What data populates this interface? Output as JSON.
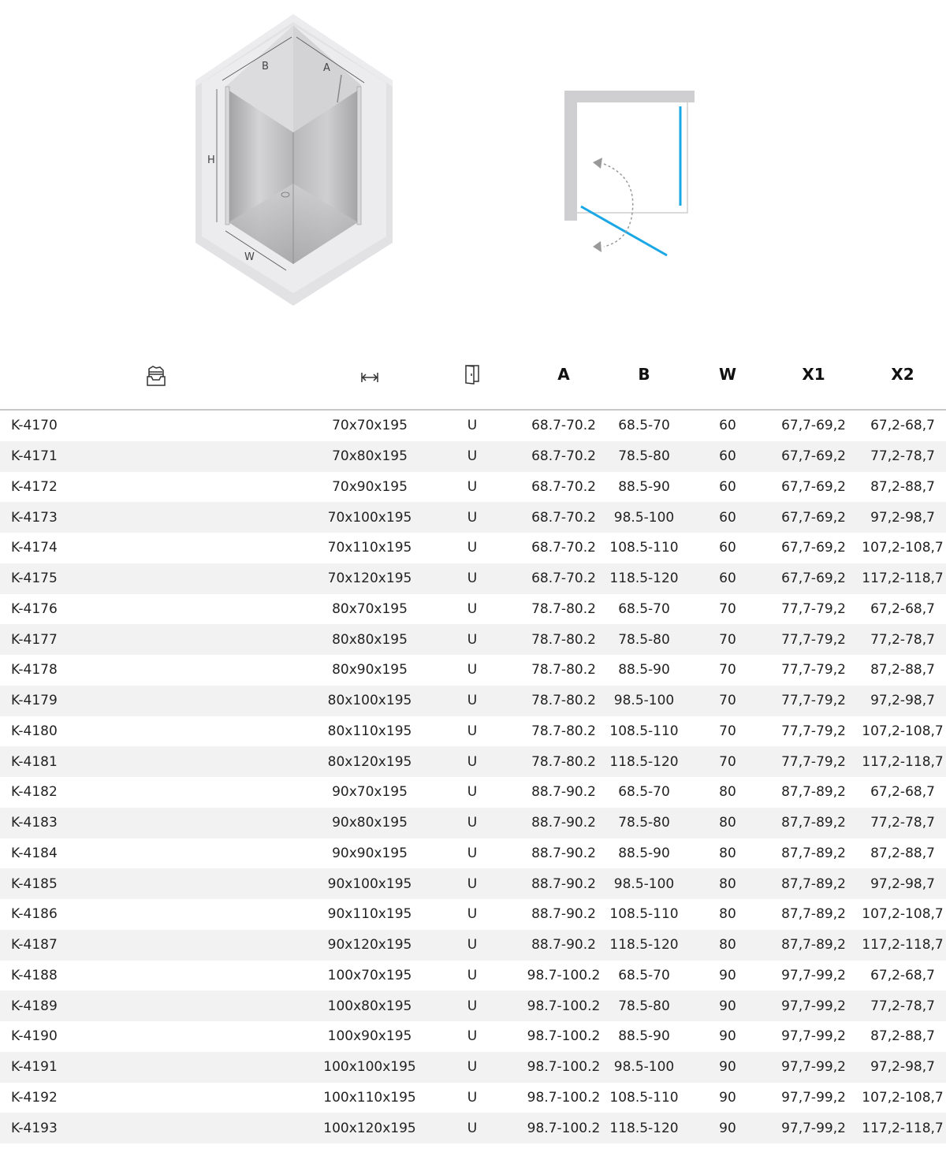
{
  "diagram": {
    "labels": {
      "b": "B",
      "a": "A",
      "h": "H",
      "w": "W"
    },
    "colors": {
      "glass_line": "#1aa7e6",
      "wall": "#cfcfd1",
      "arrow": "#999999"
    }
  },
  "table": {
    "header_icons": {
      "code": "catalog-tray-icon",
      "size": "width-arrows-icon",
      "door": "door-icon"
    },
    "headers": [
      "A",
      "B",
      "W",
      "X1",
      "X2"
    ],
    "rows": [
      [
        "K-4170",
        "70x70x195",
        "U",
        "68.7-70.2",
        "68.5-70",
        "60",
        "67,7-69,2",
        "67,2-68,7"
      ],
      [
        "K-4171",
        "70x80x195",
        "U",
        "68.7-70.2",
        "78.5-80",
        "60",
        "67,7-69,2",
        "77,2-78,7"
      ],
      [
        "K-4172",
        "70x90x195",
        "U",
        "68.7-70.2",
        "88.5-90",
        "60",
        "67,7-69,2",
        "87,2-88,7"
      ],
      [
        "K-4173",
        "70x100x195",
        "U",
        "68.7-70.2",
        "98.5-100",
        "60",
        "67,7-69,2",
        "97,2-98,7"
      ],
      [
        "K-4174",
        "70x110x195",
        "U",
        "68.7-70.2",
        "108.5-110",
        "60",
        "67,7-69,2",
        "107,2-108,7"
      ],
      [
        "K-4175",
        "70x120x195",
        "U",
        "68.7-70.2",
        "118.5-120",
        "60",
        "67,7-69,2",
        "117,2-118,7"
      ],
      [
        "K-4176",
        "80x70x195",
        "U",
        "78.7-80.2",
        "68.5-70",
        "70",
        "77,7-79,2",
        "67,2-68,7"
      ],
      [
        "K-4177",
        "80x80x195",
        "U",
        "78.7-80.2",
        "78.5-80",
        "70",
        "77,7-79,2",
        "77,2-78,7"
      ],
      [
        "K-4178",
        "80x90x195",
        "U",
        "78.7-80.2",
        "88.5-90",
        "70",
        "77,7-79,2",
        "87,2-88,7"
      ],
      [
        "K-4179",
        "80x100x195",
        "U",
        "78.7-80.2",
        "98.5-100",
        "70",
        "77,7-79,2",
        "97,2-98,7"
      ],
      [
        "K-4180",
        "80x110x195",
        "U",
        "78.7-80.2",
        "108.5-110",
        "70",
        "77,7-79,2",
        "107,2-108,7"
      ],
      [
        "K-4181",
        "80x120x195",
        "U",
        "78.7-80.2",
        "118.5-120",
        "70",
        "77,7-79,2",
        "117,2-118,7"
      ],
      [
        "K-4182",
        "90x70x195",
        "U",
        "88.7-90.2",
        "68.5-70",
        "80",
        "87,7-89,2",
        "67,2-68,7"
      ],
      [
        "K-4183",
        "90x80x195",
        "U",
        "88.7-90.2",
        "78.5-80",
        "80",
        "87,7-89,2",
        "77,2-78,7"
      ],
      [
        "K-4184",
        "90x90x195",
        "U",
        "88.7-90.2",
        "88.5-90",
        "80",
        "87,7-89,2",
        "87,2-88,7"
      ],
      [
        "K-4185",
        "90x100x195",
        "U",
        "88.7-90.2",
        "98.5-100",
        "80",
        "87,7-89,2",
        "97,2-98,7"
      ],
      [
        "K-4186",
        "90x110x195",
        "U",
        "88.7-90.2",
        "108.5-110",
        "80",
        "87,7-89,2",
        "107,2-108,7"
      ],
      [
        "K-4187",
        "90x120x195",
        "U",
        "88.7-90.2",
        "118.5-120",
        "80",
        "87,7-89,2",
        "117,2-118,7"
      ],
      [
        "K-4188",
        "100x70x195",
        "U",
        "98.7-100.2",
        "68.5-70",
        "90",
        "97,7-99,2",
        "67,2-68,7"
      ],
      [
        "K-4189",
        "100x80x195",
        "U",
        "98.7-100.2",
        "78.5-80",
        "90",
        "97,7-99,2",
        "77,2-78,7"
      ],
      [
        "K-4190",
        "100x90x195",
        "U",
        "98.7-100.2",
        "88.5-90",
        "90",
        "97,7-99,2",
        "87,2-88,7"
      ],
      [
        "K-4191",
        "100x100x195",
        "U",
        "98.7-100.2",
        "98.5-100",
        "90",
        "97,7-99,2",
        "97,2-98,7"
      ],
      [
        "K-4192",
        "100x110x195",
        "U",
        "98.7-100.2",
        "108.5-110",
        "90",
        "97,7-99,2",
        "107,2-108,7"
      ],
      [
        "K-4193",
        "100x120x195",
        "U",
        "98.7-100.2",
        "118.5-120",
        "90",
        "97,7-99,2",
        "117,2-118,7"
      ]
    ]
  }
}
